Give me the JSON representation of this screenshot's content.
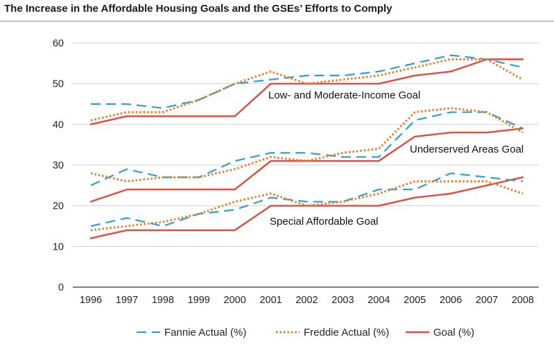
{
  "title": "The Increase in the Affordable Housing Goals and the GSEs’ Efforts to Comply",
  "chart_data": {
    "type": "line",
    "categories": [
      "1996",
      "1997",
      "1998",
      "1999",
      "2000",
      "2001",
      "2002",
      "2003",
      "2004",
      "2005",
      "2006",
      "2007",
      "2008"
    ],
    "ylim": [
      0,
      60
    ],
    "yticks": [
      0,
      10,
      20,
      30,
      40,
      50,
      60
    ],
    "grid": true,
    "legend_position": "bottom",
    "colors": {
      "fannie": "#2a9fd6",
      "freddie": "#ea7b25",
      "goal": "#e8473b"
    },
    "groups": [
      {
        "label": "Low- and Moderate-Income Goal",
        "fannie": [
          45,
          45,
          44,
          46,
          50,
          51,
          52,
          52,
          53,
          55,
          57,
          56,
          54
        ],
        "freddie": [
          41,
          43,
          43,
          46,
          50,
          53,
          50,
          51,
          52,
          54,
          56,
          56,
          51
        ],
        "goal": [
          40,
          42,
          42,
          42,
          42,
          50,
          50,
          50,
          50,
          52,
          53,
          56,
          56
        ]
      },
      {
        "label": "Underserved Areas Goal",
        "fannie": [
          25,
          29,
          27,
          27,
          31,
          33,
          33,
          32,
          32,
          41,
          43,
          43,
          39
        ],
        "freddie": [
          28,
          26,
          27,
          27,
          29,
          32,
          31,
          33,
          34,
          43,
          44,
          43,
          38
        ],
        "goal": [
          21,
          24,
          24,
          24,
          24,
          31,
          31,
          31,
          31,
          37,
          38,
          38,
          39
        ]
      },
      {
        "label": "Special Affordable Goal",
        "fannie": [
          15,
          17,
          15,
          18,
          19,
          22,
          21,
          21,
          24,
          24,
          28,
          27,
          26
        ],
        "freddie": [
          14,
          15,
          16,
          18,
          21,
          23,
          20,
          21,
          23,
          26,
          26,
          26,
          23
        ],
        "goal": [
          12,
          14,
          14,
          14,
          14,
          20,
          20,
          20,
          20,
          22,
          23,
          25,
          27
        ]
      }
    ],
    "legend": [
      "Fannie Actual (%)",
      "Freddie Actual (%)",
      "Goal (%)"
    ]
  }
}
